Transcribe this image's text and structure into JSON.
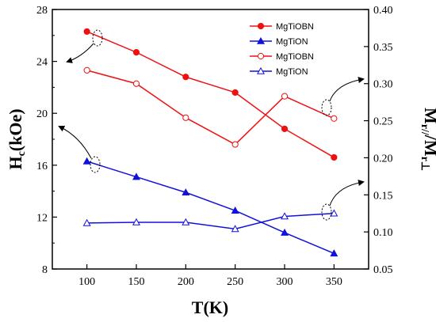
{
  "chart_data": {
    "type": "line",
    "x": [
      100,
      150,
      200,
      250,
      300,
      350
    ],
    "xlabel": "T(K)",
    "xlim": [
      65,
      385
    ],
    "xticks": [
      100,
      150,
      200,
      250,
      300,
      350
    ],
    "ylabel_left": {
      "main": "H",
      "sub": "c",
      "rest": "(kOe)"
    },
    "ylim_left": [
      8,
      28
    ],
    "yticks_left": [
      8,
      12,
      16,
      20,
      24,
      28
    ],
    "ylabel_right": {
      "main": "M",
      "sub1": "r//",
      "sep": "/M",
      "sub2": "r⊥"
    },
    "ylim_right": [
      0.05,
      0.4
    ],
    "yticks_right": [
      "0.05",
      "0.10",
      "0.15",
      "0.20",
      "0.25",
      "0.30",
      "0.35",
      "0.40"
    ],
    "legend_position": "top-right",
    "series": [
      {
        "name": "MgTiOBN",
        "axis": "left",
        "marker": "circle",
        "filled": true,
        "color": "#ee1111",
        "values": [
          26.3,
          24.7,
          22.8,
          21.6,
          18.8,
          16.6
        ]
      },
      {
        "name": "MgTiON",
        "axis": "left",
        "marker": "triangle",
        "filled": true,
        "color": "#1111dd",
        "values": [
          16.3,
          15.1,
          13.9,
          12.5,
          10.8,
          9.2
        ]
      },
      {
        "name": "MgTiOBN",
        "axis": "right",
        "marker": "circle",
        "filled": false,
        "color": "#ee1111",
        "values": [
          0.318,
          0.3,
          0.254,
          0.218,
          0.283,
          0.253
        ]
      },
      {
        "name": "MgTiON",
        "axis": "right",
        "marker": "triangle",
        "filled": false,
        "color": "#1111dd",
        "values": [
          0.112,
          0.113,
          0.113,
          0.104,
          0.121,
          0.125
        ]
      }
    ]
  }
}
